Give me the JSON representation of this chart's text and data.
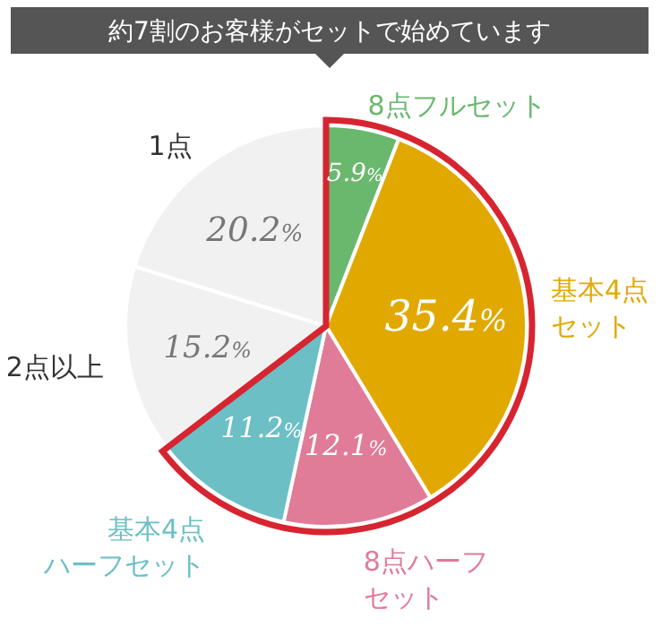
{
  "chart_data": {
    "type": "pie",
    "title": "約7割のお客様がセットで始めています",
    "categories": [
      "8点フルセット",
      "基本4点セット",
      "8点ハーフセット",
      "基本4点ハーフセット",
      "2点以上",
      "1点"
    ],
    "values": [
      5.9,
      35.4,
      12.1,
      11.2,
      15.2,
      20.2
    ],
    "value_labels": [
      "5.9%",
      "35.4%",
      "12.1%",
      "11.2%",
      "15.2%",
      "20.2%"
    ],
    "colors": [
      "#6ab86e",
      "#e1a900",
      "#e07c98",
      "#6cbfc5",
      "#f1f1f1",
      "#f1f1f1"
    ]
  }
}
